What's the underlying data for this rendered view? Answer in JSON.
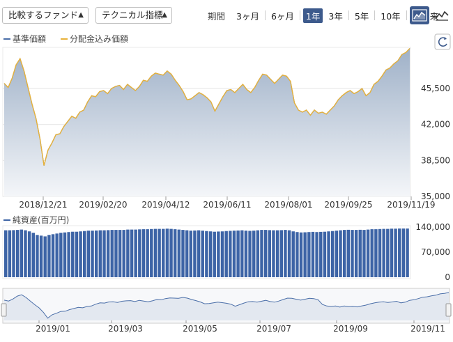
{
  "toolbar": {
    "compare_label": "比較するファンド",
    "technical_label": "テクニカル指標",
    "period_label": "期間",
    "periods": [
      "3ヶ月",
      "6ヶ月",
      "1年",
      "3年",
      "5年",
      "10年",
      "設定来"
    ],
    "active_period": "1年",
    "view_icons": [
      "area-chart-icon",
      "line-chart-icon"
    ]
  },
  "legend": {
    "series1": "基準価額",
    "series2": "分配金込み価額",
    "volume": "純資産(百万円)"
  },
  "colors": {
    "nav_line": "#4a6ea8",
    "dist_line": "#e8b23a",
    "area_top": "#9fb1c8",
    "area_bottom": "#f4f6f9",
    "bar": "#3d64a6",
    "active_bg": "#3d5a8c"
  },
  "chart_data": [
    {
      "type": "area",
      "x_ticks": [
        "2018/12/21",
        "2019/02/20",
        "2019/04/12",
        "2019/06/11",
        "2019/08/01",
        "2019/09/25",
        "2019/11/19"
      ],
      "y_ticks": [
        35000,
        38500,
        42000,
        45500
      ],
      "ylim": [
        35000,
        49500
      ],
      "series": [
        {
          "name": "基準価額",
          "values": [
            46000,
            45600,
            46500,
            47800,
            48400,
            47200,
            45600,
            44000,
            42600,
            40600,
            38000,
            39500,
            40200,
            41000,
            41100,
            41800,
            42300,
            42800,
            42600,
            43200,
            43400,
            44200,
            44800,
            44700,
            45200,
            45300,
            45000,
            45500,
            45700,
            45800,
            45400,
            45900,
            45600,
            45300,
            45700,
            46300,
            46200,
            46700,
            47000,
            46900,
            46800,
            47200,
            46900,
            46300,
            45800,
            45200,
            44400,
            44500,
            44800,
            45100,
            44900,
            44600,
            44200,
            43300,
            44000,
            44700,
            45300,
            45400,
            45100,
            45500,
            45900,
            45400,
            45100,
            45600,
            46300,
            46900,
            46800,
            46400,
            46000,
            46400,
            46800,
            46700,
            46200,
            44100,
            43400,
            43200,
            43400,
            42900,
            43400,
            43100,
            43200,
            43000,
            43400,
            43800,
            44400,
            44800,
            45100,
            45300,
            45000,
            45200,
            45500,
            44800,
            45100,
            45900,
            46200,
            46700,
            47300,
            47500,
            47900,
            48200,
            48800,
            49000,
            49400
          ]
        },
        {
          "name": "分配金込み価額",
          "values": [
            46000,
            45600,
            46500,
            47800,
            48400,
            47200,
            45600,
            44000,
            42600,
            40600,
            38000,
            39500,
            40200,
            41000,
            41100,
            41800,
            42300,
            42800,
            42600,
            43200,
            43400,
            44200,
            44800,
            44700,
            45200,
            45300,
            45000,
            45500,
            45700,
            45800,
            45400,
            45900,
            45600,
            45300,
            45700,
            46300,
            46200,
            46700,
            47000,
            46900,
            46800,
            47200,
            46900,
            46300,
            45800,
            45200,
            44400,
            44500,
            44800,
            45100,
            44900,
            44600,
            44200,
            43300,
            44000,
            44700,
            45300,
            45400,
            45100,
            45500,
            45900,
            45400,
            45100,
            45600,
            46300,
            46900,
            46800,
            46400,
            46000,
            46400,
            46800,
            46700,
            46200,
            44100,
            43400,
            43200,
            43400,
            42900,
            43400,
            43100,
            43200,
            43000,
            43400,
            43800,
            44400,
            44800,
            45100,
            45300,
            45000,
            45200,
            45500,
            44800,
            45100,
            45900,
            46200,
            46700,
            47300,
            47500,
            47900,
            48200,
            48800,
            49000,
            49400
          ]
        }
      ]
    },
    {
      "type": "bar",
      "y_ticks": [
        0,
        70000,
        140000
      ],
      "ylim": [
        0,
        140000
      ],
      "values": [
        131000,
        131000,
        131500,
        132000,
        133000,
        131000,
        128000,
        124000,
        118000,
        116000,
        114000,
        118000,
        120000,
        122000,
        124000,
        125000,
        126000,
        127000,
        127000,
        128000,
        129000,
        130000,
        130000,
        130500,
        131000,
        131000,
        131500,
        132000,
        132000,
        132000,
        132000,
        133000,
        133000,
        133000,
        133500,
        134000,
        134000,
        134500,
        135000,
        135000,
        135000,
        135500,
        135000,
        134000,
        133000,
        132000,
        131000,
        130000,
        130500,
        131000,
        130000,
        129000,
        128000,
        127000,
        127500,
        128000,
        129000,
        129500,
        130000,
        130500,
        131000,
        130000,
        129500,
        130000,
        131000,
        132000,
        132000,
        131500,
        131000,
        131000,
        131500,
        132000,
        131000,
        128000,
        126000,
        125000,
        125500,
        126000,
        126500,
        126000,
        126500,
        127000,
        128000,
        129000,
        130000,
        131000,
        132000,
        132500,
        132000,
        132000,
        132500,
        132000,
        133000,
        134000,
        134000,
        134500,
        135000,
        135000,
        135500,
        135500,
        136000,
        136000,
        136000
      ]
    },
    {
      "type": "line",
      "x_ticks": [
        "2019/01",
        "2019/03",
        "2019/05",
        "2019/07",
        "2019/09",
        "2019/11"
      ]
    }
  ]
}
